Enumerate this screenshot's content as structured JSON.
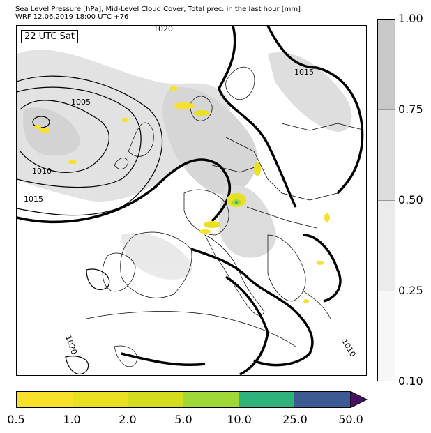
{
  "title": {
    "line1": "Sea Level Pressure [hPa], Mid-Level Cloud Cover, Total prec. in the last hour [mm]",
    "line2": "WRF 12.06.2019 18:00 UTC +76"
  },
  "time_label": "22 UTC Sat",
  "isobar_labels": [
    "1020",
    "1015",
    "1005",
    "1010",
    "1015",
    "1020",
    "1010"
  ],
  "cloud_colorbar": {
    "ticks": [
      "1.00",
      "0.75",
      "0.50",
      "0.25",
      "0.10"
    ],
    "colors": [
      "#c8c8c8",
      "#dcdcdc",
      "#ebebeb",
      "#f7f7f7"
    ]
  },
  "precip_colorbar": {
    "ticks": [
      "0.5",
      "1.0",
      "2.0",
      "5.0",
      "10.0",
      "25.0",
      "50.0"
    ],
    "colors": [
      "#f8e12a",
      "#e8e021",
      "#d4dc1e",
      "#a0d83a",
      "#2eb47a",
      "#3e5a92",
      "#4a1060"
    ]
  }
}
